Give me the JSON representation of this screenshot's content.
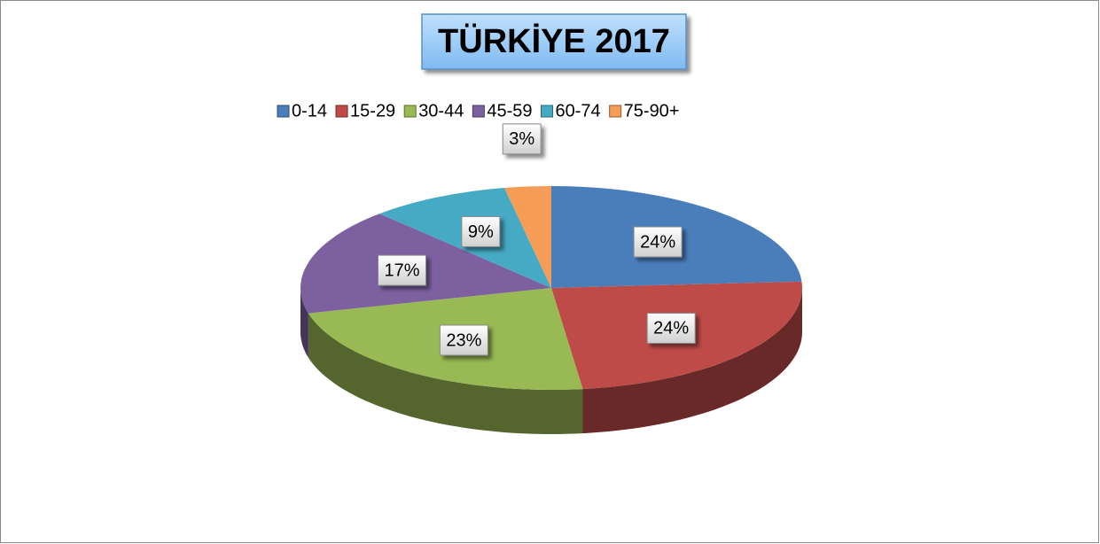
{
  "chart_data": {
    "type": "pie",
    "title": "TÜRKİYE 2017",
    "categories": [
      "0-14",
      "15-29",
      "30-44",
      "45-59",
      "60-74",
      "75-90+"
    ],
    "values": [
      24,
      24,
      23,
      17,
      9,
      3
    ],
    "value_labels": [
      "24%",
      "24%",
      "23%",
      "17%",
      "9%",
      "3%"
    ],
    "colors": [
      "#4a7ebb",
      "#be4b48",
      "#98b954",
      "#7d60a0",
      "#46aac5",
      "#f59d56"
    ],
    "legend": "top"
  }
}
